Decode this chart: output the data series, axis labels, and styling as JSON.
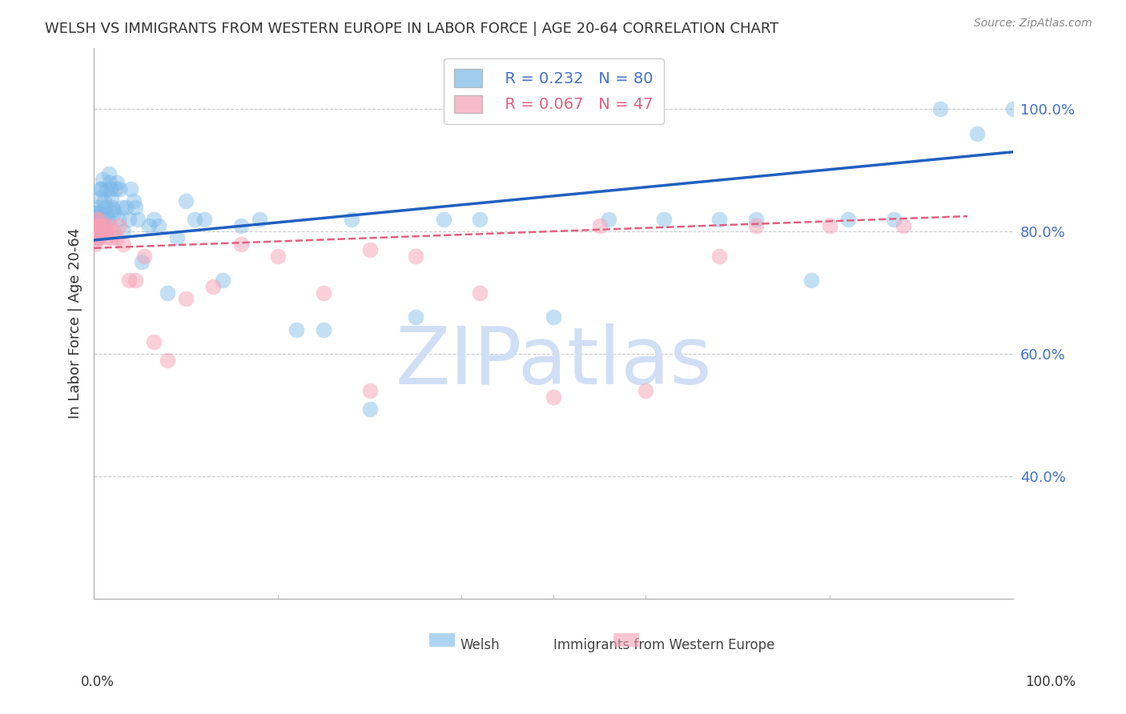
{
  "title": "WELSH VS IMMIGRANTS FROM WESTERN EUROPE IN LABOR FORCE | AGE 20-64 CORRELATION CHART",
  "source": "Source: ZipAtlas.com",
  "ylabel": "In Labor Force | Age 20-64",
  "ytick_labels": [
    "40.0%",
    "60.0%",
    "80.0%",
    "100.0%"
  ],
  "ytick_values": [
    0.4,
    0.6,
    0.8,
    1.0
  ],
  "xlim": [
    0.0,
    1.0
  ],
  "ylim": [
    0.2,
    1.1
  ],
  "legend_blue_r": "R = 0.232",
  "legend_blue_n": "N = 80",
  "legend_pink_r": "R = 0.067",
  "legend_pink_n": "N = 47",
  "blue_color": "#7ab8e8",
  "pink_color": "#f4a0b5",
  "blue_line_color": "#2060c0",
  "pink_line_color": "#e06080",
  "blue_text_color": "#4472c4",
  "pink_text_color": "#e06080",
  "watermark": "ZIPatlas",
  "watermark_color": "#d0dff5",
  "background_color": "#ffffff",
  "grid_color": "#cccccc",
  "title_color": "#333333",
  "source_color": "#888888",
  "blue_scatter_x": [
    0.001,
    0.001,
    0.002,
    0.002,
    0.002,
    0.003,
    0.003,
    0.003,
    0.003,
    0.004,
    0.004,
    0.004,
    0.004,
    0.005,
    0.005,
    0.005,
    0.005,
    0.006,
    0.006,
    0.007,
    0.007,
    0.008,
    0.009,
    0.009,
    0.01,
    0.01,
    0.011,
    0.012,
    0.013,
    0.014,
    0.015,
    0.016,
    0.017,
    0.018,
    0.019,
    0.02,
    0.021,
    0.022,
    0.023,
    0.025,
    0.027,
    0.028,
    0.03,
    0.032,
    0.035,
    0.038,
    0.04,
    0.043,
    0.045,
    0.048,
    0.052,
    0.06,
    0.065,
    0.07,
    0.08,
    0.09,
    0.1,
    0.11,
    0.12,
    0.14,
    0.16,
    0.18,
    0.22,
    0.25,
    0.28,
    0.3,
    0.35,
    0.38,
    0.42,
    0.5,
    0.56,
    0.62,
    0.68,
    0.72,
    0.78,
    0.82,
    0.87,
    0.92,
    0.96,
    1.0
  ],
  "blue_scatter_y": [
    0.83,
    0.81,
    0.82,
    0.8,
    0.815,
    0.84,
    0.825,
    0.81,
    0.8,
    0.82,
    0.83,
    0.8,
    0.81,
    0.82,
    0.79,
    0.83,
    0.81,
    0.795,
    0.815,
    0.87,
    0.855,
    0.87,
    0.885,
    0.81,
    0.82,
    0.8,
    0.85,
    0.84,
    0.83,
    0.87,
    0.82,
    0.895,
    0.88,
    0.87,
    0.855,
    0.84,
    0.835,
    0.83,
    0.87,
    0.88,
    0.82,
    0.87,
    0.84,
    0.8,
    0.84,
    0.82,
    0.87,
    0.85,
    0.84,
    0.82,
    0.75,
    0.81,
    0.82,
    0.81,
    0.7,
    0.79,
    0.85,
    0.82,
    0.82,
    0.72,
    0.81,
    0.82,
    0.64,
    0.64,
    0.82,
    0.51,
    0.66,
    0.82,
    0.82,
    0.66,
    0.82,
    0.82,
    0.82,
    0.82,
    0.72,
    0.82,
    0.82,
    1.0,
    0.96,
    1.0
  ],
  "pink_scatter_x": [
    0.001,
    0.001,
    0.002,
    0.002,
    0.003,
    0.003,
    0.004,
    0.004,
    0.005,
    0.005,
    0.005,
    0.006,
    0.007,
    0.008,
    0.009,
    0.01,
    0.011,
    0.012,
    0.013,
    0.015,
    0.017,
    0.019,
    0.022,
    0.025,
    0.028,
    0.032,
    0.038,
    0.045,
    0.055,
    0.065,
    0.08,
    0.1,
    0.13,
    0.16,
    0.2,
    0.25,
    0.3,
    0.35,
    0.42,
    0.5,
    0.55,
    0.6,
    0.68,
    0.72,
    0.8,
    0.88,
    0.3
  ],
  "pink_scatter_y": [
    0.8,
    0.81,
    0.78,
    0.81,
    0.79,
    0.82,
    0.8,
    0.81,
    0.8,
    0.82,
    0.79,
    0.81,
    0.8,
    0.81,
    0.8,
    0.81,
    0.8,
    0.81,
    0.8,
    0.79,
    0.81,
    0.79,
    0.8,
    0.79,
    0.81,
    0.78,
    0.72,
    0.72,
    0.76,
    0.62,
    0.59,
    0.69,
    0.71,
    0.78,
    0.76,
    0.7,
    0.77,
    0.76,
    0.7,
    0.53,
    0.81,
    0.54,
    0.76,
    0.81,
    0.81,
    0.81,
    0.54
  ],
  "blue_trend_x": [
    0.0,
    1.0
  ],
  "blue_trend_y": [
    0.786,
    0.93
  ],
  "pink_trend_x": [
    0.0,
    0.95
  ],
  "pink_trend_y": [
    0.773,
    0.825
  ],
  "bottom_legend_welsh": "Welsh",
  "bottom_legend_immigrants": "Immigrants from Western Europe"
}
